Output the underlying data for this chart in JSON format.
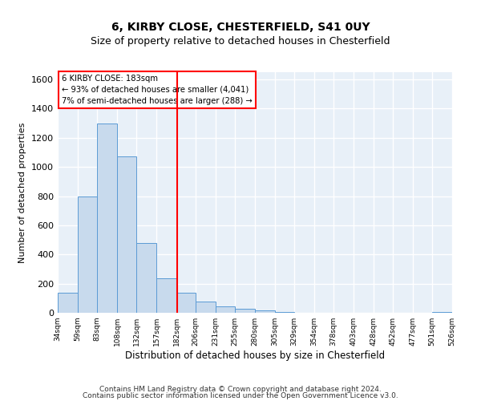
{
  "title": "6, KIRBY CLOSE, CHESTERFIELD, S41 0UY",
  "subtitle": "Size of property relative to detached houses in Chesterfield",
  "xlabel": "Distribution of detached houses by size in Chesterfield",
  "ylabel": "Number of detached properties",
  "bar_color": "#c8daed",
  "bar_edge_color": "#5b9bd5",
  "background_color": "#e8f0f8",
  "grid_color": "#ffffff",
  "property_line_x": 183,
  "annotation_text_line1": "6 KIRBY CLOSE: 183sqm",
  "annotation_text_line2": "← 93% of detached houses are smaller (4,041)",
  "annotation_text_line3": "7% of semi-detached houses are larger (288) →",
  "footnote1": "Contains HM Land Registry data © Crown copyright and database right 2024.",
  "footnote2": "Contains public sector information licensed under the Open Government Licence v3.0.",
  "bin_edges": [
    34,
    59,
    83,
    108,
    132,
    157,
    182,
    206,
    231,
    255,
    280,
    305,
    329,
    354,
    378,
    403,
    428,
    452,
    477,
    501,
    526
  ],
  "bar_heights": [
    140,
    800,
    1300,
    1075,
    480,
    235,
    140,
    75,
    45,
    25,
    15,
    5,
    2,
    1,
    1,
    1,
    0,
    0,
    0,
    5
  ],
  "ylim": [
    0,
    1650
  ],
  "yticks": [
    0,
    200,
    400,
    600,
    800,
    1000,
    1200,
    1400,
    1600
  ],
  "tick_labels": [
    "34sqm",
    "59sqm",
    "83sqm",
    "108sqm",
    "132sqm",
    "157sqm",
    "182sqm",
    "206sqm",
    "231sqm",
    "255sqm",
    "280sqm",
    "305sqm",
    "329sqm",
    "354sqm",
    "378sqm",
    "403sqm",
    "428sqm",
    "452sqm",
    "477sqm",
    "501sqm",
    "526sqm"
  ]
}
